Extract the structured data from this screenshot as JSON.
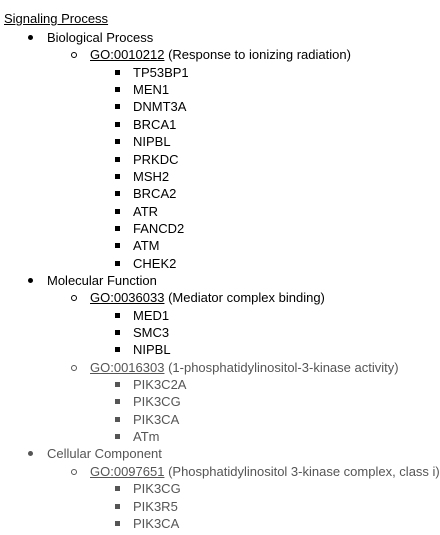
{
  "document": {
    "title": "Signaling Process",
    "sections": [
      {
        "label": "Biological Process",
        "muted": false,
        "terms": [
          {
            "go_id": "GO:0010212",
            "description": "(Response to ionizing radiation)",
            "muted": false,
            "genes": [
              "TP53BP1",
              "MEN1",
              "DNMT3A",
              "BRCA1",
              "NIPBL",
              "PRKDC",
              "MSH2",
              "BRCA2",
              "ATR",
              "FANCD2",
              "ATM",
              "CHEK2"
            ]
          }
        ]
      },
      {
        "label": "Molecular Function",
        "muted": false,
        "terms": [
          {
            "go_id": "GO:0036033",
            "description": "(Mediator complex binding)",
            "muted": false,
            "genes": [
              "MED1",
              "SMC3",
              "NIPBL"
            ]
          },
          {
            "go_id": "GO:0016303",
            "description": "(1-phosphatidylinositol-3-kinase activity)",
            "muted": true,
            "genes": [
              "PIK3C2A",
              "PIK3CG",
              "PIK3CA",
              "ATm"
            ]
          }
        ]
      },
      {
        "label": "Cellular Component",
        "muted": true,
        "terms": [
          {
            "go_id": "GO:0097651",
            "description": "(Phosphatidylinositol 3-kinase complex, class i)",
            "muted": true,
            "genes": [
              "PIK3CG",
              "PIK3R5",
              "PIK3CA"
            ]
          }
        ]
      }
    ]
  }
}
